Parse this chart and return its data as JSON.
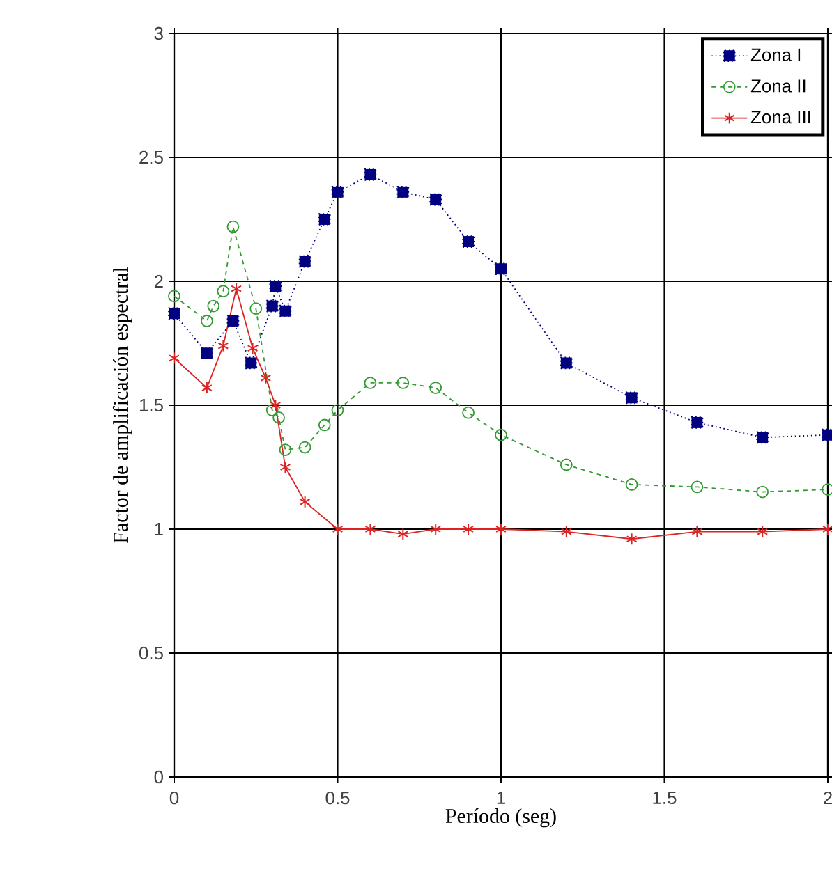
{
  "chart_data": {
    "type": "line",
    "xlabel": "Período  (seg)",
    "ylabel": "Factor de amplificación espectral",
    "xlim": [
      0,
      2
    ],
    "ylim": [
      0,
      3
    ],
    "xticks": [
      0,
      0.5,
      1,
      1.5,
      2
    ],
    "yticks": [
      0,
      0.5,
      1,
      1.5,
      2,
      2.5,
      3
    ],
    "grid": true,
    "legend": "top right",
    "series": [
      {
        "name": "Zona I",
        "color": "#000080",
        "marker": "square",
        "line_style": "dotted",
        "x": [
          0,
          0.1,
          0.18,
          0.235,
          0.3,
          0.31,
          0.34,
          0.4,
          0.46,
          0.5,
          0.6,
          0.7,
          0.8,
          0.9,
          1.0,
          1.2,
          1.4,
          1.6,
          1.8,
          2.0
        ],
        "values": [
          1.87,
          1.71,
          1.84,
          1.67,
          1.9,
          1.98,
          1.88,
          2.08,
          2.25,
          2.36,
          2.43,
          2.36,
          2.33,
          2.16,
          2.05,
          1.67,
          1.53,
          1.43,
          1.37,
          1.38
        ]
      },
      {
        "name": "Zona II",
        "color": "#339933",
        "marker": "circle",
        "line_style": "dashed",
        "x": [
          0,
          0.1,
          0.12,
          0.15,
          0.18,
          0.25,
          0.3,
          0.32,
          0.34,
          0.4,
          0.46,
          0.5,
          0.6,
          0.7,
          0.8,
          0.9,
          1.0,
          1.2,
          1.4,
          1.6,
          1.8,
          2.0
        ],
        "values": [
          1.94,
          1.84,
          1.9,
          1.96,
          2.22,
          1.89,
          1.48,
          1.45,
          1.32,
          1.33,
          1.42,
          1.48,
          1.59,
          1.59,
          1.57,
          1.47,
          1.38,
          1.26,
          1.18,
          1.17,
          1.15,
          1.16
        ]
      },
      {
        "name": "Zona III",
        "color": "#dd2222",
        "marker": "cross",
        "line_style": "solid",
        "x": [
          0,
          0.1,
          0.15,
          0.19,
          0.24,
          0.28,
          0.31,
          0.34,
          0.4,
          0.5,
          0.6,
          0.7,
          0.8,
          0.9,
          1.0,
          1.2,
          1.4,
          1.6,
          1.8,
          2.0
        ],
        "values": [
          1.69,
          1.57,
          1.74,
          1.97,
          1.73,
          1.61,
          1.5,
          1.25,
          1.11,
          1.0,
          1.0,
          0.98,
          1.0,
          1.0,
          1.0,
          0.99,
          0.96,
          0.99,
          0.99,
          1.0
        ]
      }
    ]
  }
}
